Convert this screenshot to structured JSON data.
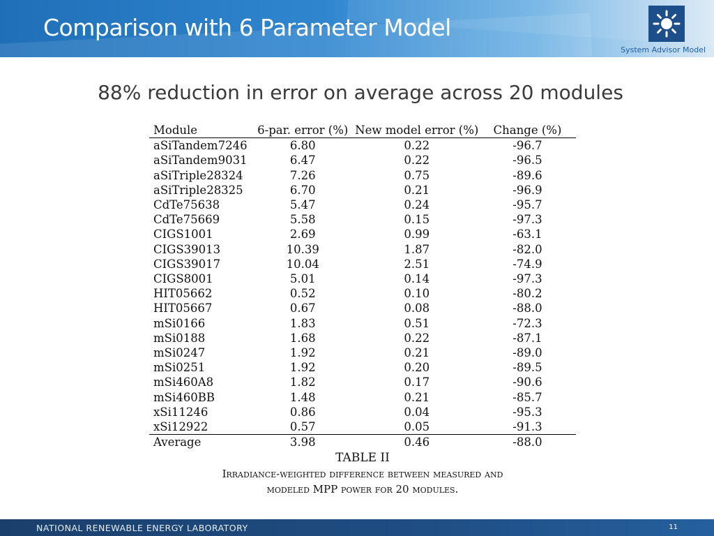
{
  "header": {
    "title": "Comparison with 6 Parameter Model",
    "logo_icon": "sun-icon",
    "logo_text": "System Advisor Model",
    "logo_bg": "#1d4f8a"
  },
  "subtitle": "88% reduction in error on average across 20 modules",
  "table": {
    "columns": [
      "Module",
      "6-par. error (%)",
      "New model error (%)",
      "Change (%)"
    ],
    "rows": [
      [
        "aSiTandem7246",
        "6.80",
        "0.22",
        "-96.7"
      ],
      [
        "aSiTandem9031",
        "6.47",
        "0.22",
        "-96.5"
      ],
      [
        "aSiTriple28324",
        "7.26",
        "0.75",
        "-89.6"
      ],
      [
        "aSiTriple28325",
        "6.70",
        "0.21",
        "-96.9"
      ],
      [
        "CdTe75638",
        "5.47",
        "0.24",
        "-95.7"
      ],
      [
        "CdTe75669",
        "5.58",
        "0.15",
        "-97.3"
      ],
      [
        "CIGS1001",
        "2.69",
        "0.99",
        "-63.1"
      ],
      [
        "CIGS39013",
        "10.39",
        "1.87",
        "-82.0"
      ],
      [
        "CIGS39017",
        "10.04",
        "2.51",
        "-74.9"
      ],
      [
        "CIGS8001",
        "5.01",
        "0.14",
        "-97.3"
      ],
      [
        "HIT05662",
        "0.52",
        "0.10",
        "-80.2"
      ],
      [
        "HIT05667",
        "0.67",
        "0.08",
        "-88.0"
      ],
      [
        "mSi0166",
        "1.83",
        "0.51",
        "-72.3"
      ],
      [
        "mSi0188",
        "1.68",
        "0.22",
        "-87.1"
      ],
      [
        "mSi0247",
        "1.92",
        "0.21",
        "-89.0"
      ],
      [
        "mSi0251",
        "1.92",
        "0.20",
        "-89.5"
      ],
      [
        "mSi460A8",
        "1.82",
        "0.17",
        "-90.6"
      ],
      [
        "mSi460BB",
        "1.48",
        "0.21",
        "-85.7"
      ],
      [
        "xSi11246",
        "0.86",
        "0.04",
        "-95.3"
      ],
      [
        "xSi12922",
        "0.57",
        "0.05",
        "-91.3"
      ]
    ],
    "average": [
      "Average",
      "3.98",
      "0.46",
      "-88.0"
    ],
    "caption_label": "TABLE II",
    "caption_line1": "Irradiance-weighted difference between measured and",
    "caption_line2": "modeled MPP power for 20 modules."
  },
  "footer": {
    "org": "NATIONAL RENEWABLE ENERGY LABORATORY",
    "page_number": "11"
  }
}
